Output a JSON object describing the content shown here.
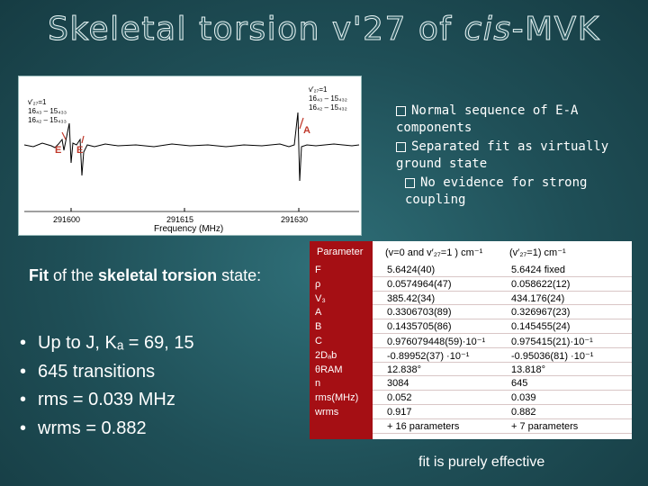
{
  "slide": {
    "title_prefix": "Skeletal torsion v'27 of ",
    "title_italic": "cis",
    "title_suffix": "-MVK"
  },
  "spectrum": {
    "x_axis_label": "Frequency (MHz)",
    "ticks": [
      "291600",
      "291615",
      "291630"
    ],
    "label_left_vt": "v′₂₇=1",
    "label_left_1": "16₄₃ – 15₄₃₃",
    "label_left_2": "16₄₂ – 15₄₃₃",
    "label_right_vt": "v′₂₇=1",
    "label_right_1": "16₄₃ – 15₄₃₂",
    "label_right_2": "16₄₂ – 15₄₃₂",
    "marker_e1": "E",
    "marker_e2": "E",
    "marker_a": "A"
  },
  "notes": [
    "Normal sequence of E-A components",
    "Separated fit as virtually ground state",
    "No evidence for strong coupling"
  ],
  "fit": {
    "prefix": "Fit",
    "mid": " of the ",
    "bold": "skeletal torsion",
    "suffix": " state:"
  },
  "bullets": [
    "Up to J, Kₐ = 69, 15",
    "645 transitions",
    "rms =  0.039 MHz",
    "wrms = 0.882"
  ],
  "table": {
    "headers": [
      "Parameter",
      "(v=0 and v′₂₇=1 ) cm⁻¹",
      "(v′₂₇=1) cm⁻¹"
    ],
    "params": [
      "F",
      "ρ",
      "V₃",
      "A",
      "B",
      "C",
      "2Dₐb",
      "θRAM",
      "n",
      "rms(MHz)",
      "wrms"
    ],
    "col1": [
      "5.6424(40)",
      "0.0574964(47)",
      "385.42(34)",
      "0.3306703(89)",
      "0.1435705(86)",
      "0.976079448(59)·10⁻¹",
      "-0.89952(37) ·10⁻¹",
      "12.838°",
      "3084",
      "0.052",
      "0.917",
      "+ 16 parameters"
    ],
    "col2": [
      "5.6424   fixed",
      "0.058622(12)",
      "434.176(24)",
      "0.326967(23)",
      "0.145455(24)",
      "0.975415(21)·10⁻¹",
      "-0.95036(81) ·10⁻¹",
      "13.818°",
      "645",
      "0.039",
      "0.882",
      "+ 7 parameters"
    ]
  },
  "footer": "fit is purely effective"
}
